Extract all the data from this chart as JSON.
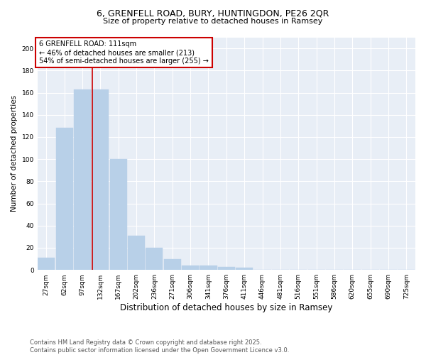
{
  "title1": "6, GRENFELL ROAD, BURY, HUNTINGDON, PE26 2QR",
  "title2": "Size of property relative to detached houses in Ramsey",
  "xlabel": "Distribution of detached houses by size in Ramsey",
  "ylabel": "Number of detached properties",
  "categories": [
    "27sqm",
    "62sqm",
    "97sqm",
    "132sqm",
    "167sqm",
    "202sqm",
    "236sqm",
    "271sqm",
    "306sqm",
    "341sqm",
    "376sqm",
    "411sqm",
    "446sqm",
    "481sqm",
    "516sqm",
    "551sqm",
    "586sqm",
    "620sqm",
    "655sqm",
    "690sqm",
    "725sqm"
  ],
  "values": [
    11,
    128,
    163,
    163,
    100,
    31,
    20,
    10,
    4,
    4,
    3,
    2,
    0,
    0,
    0,
    0,
    0,
    0,
    0,
    0,
    0
  ],
  "bar_color": "#b8d0e8",
  "bar_edge_color": "#b8d0e8",
  "figure_bg": "#ffffff",
  "axes_bg": "#e8eef6",
  "grid_color": "#ffffff",
  "red_line_x": 2.57,
  "annotation_text": "6 GRENFELL ROAD: 111sqm\n← 46% of detached houses are smaller (213)\n54% of semi-detached houses are larger (255) →",
  "annotation_box_color": "#ffffff",
  "annotation_box_edge": "#cc0000",
  "footnote": "Contains HM Land Registry data © Crown copyright and database right 2025.\nContains public sector information licensed under the Open Government Licence v3.0.",
  "ylim": [
    0,
    210
  ],
  "yticks": [
    0,
    20,
    40,
    60,
    80,
    100,
    120,
    140,
    160,
    180,
    200
  ]
}
